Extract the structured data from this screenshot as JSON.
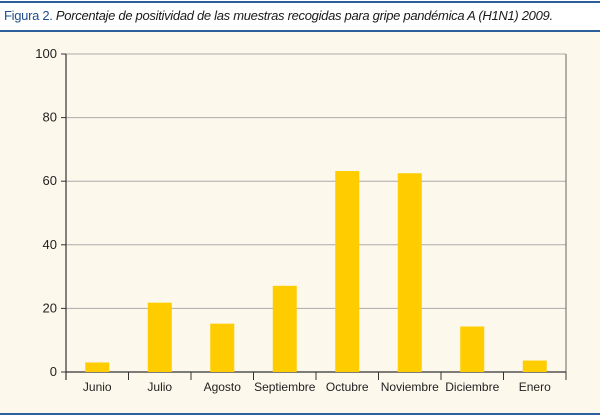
{
  "figure": {
    "label": "Figura 2.",
    "caption": "Porcentaje de positividad de las muestras recogidas para gripe pandémica A (H1N1) 2009."
  },
  "colors": {
    "bar": "#ffcc00",
    "border": "#2d5f9a",
    "background": "#fdf8ec",
    "grid": "#aaaaaa"
  },
  "chart_data": {
    "type": "bar",
    "title": "",
    "xlabel": "",
    "ylabel": "",
    "categories": [
      "Junio",
      "Julio",
      "Agosto",
      "Septiembre",
      "Octubre",
      "Noviembre",
      "Diciembre",
      "Enero"
    ],
    "values": [
      3.0,
      21.8,
      15.2,
      27.1,
      63.2,
      62.5,
      14.3,
      3.6
    ],
    "ylim": [
      0,
      100
    ],
    "yticks": [
      0,
      20,
      40,
      60,
      80,
      100
    ],
    "grid": true,
    "legend": "none"
  }
}
